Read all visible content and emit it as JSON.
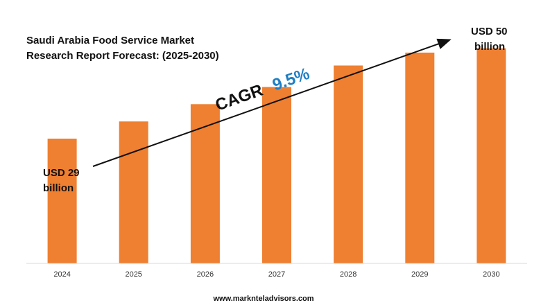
{
  "chart_data": {
    "type": "bar",
    "title_lines": [
      "Saudi Arabia Food Service Market",
      "Research Report Forecast: (2025-2030)"
    ],
    "categories": [
      "2024",
      "2025",
      "2026",
      "2027",
      "2028",
      "2029",
      "2030"
    ],
    "values": [
      29,
      33,
      37,
      41,
      46,
      49,
      50
    ],
    "ylim": [
      0,
      58
    ],
    "grid": false,
    "bar_color": "#ef7f31",
    "start_label_lines": [
      "USD 29",
      "billion"
    ],
    "end_label_lines": [
      "USD 50",
      "billion"
    ],
    "cagr_label": "CAGR",
    "cagr_value": "9.5%",
    "cagr_color": "#1f7fc4"
  },
  "footer": "www.marknteladvisors.com"
}
